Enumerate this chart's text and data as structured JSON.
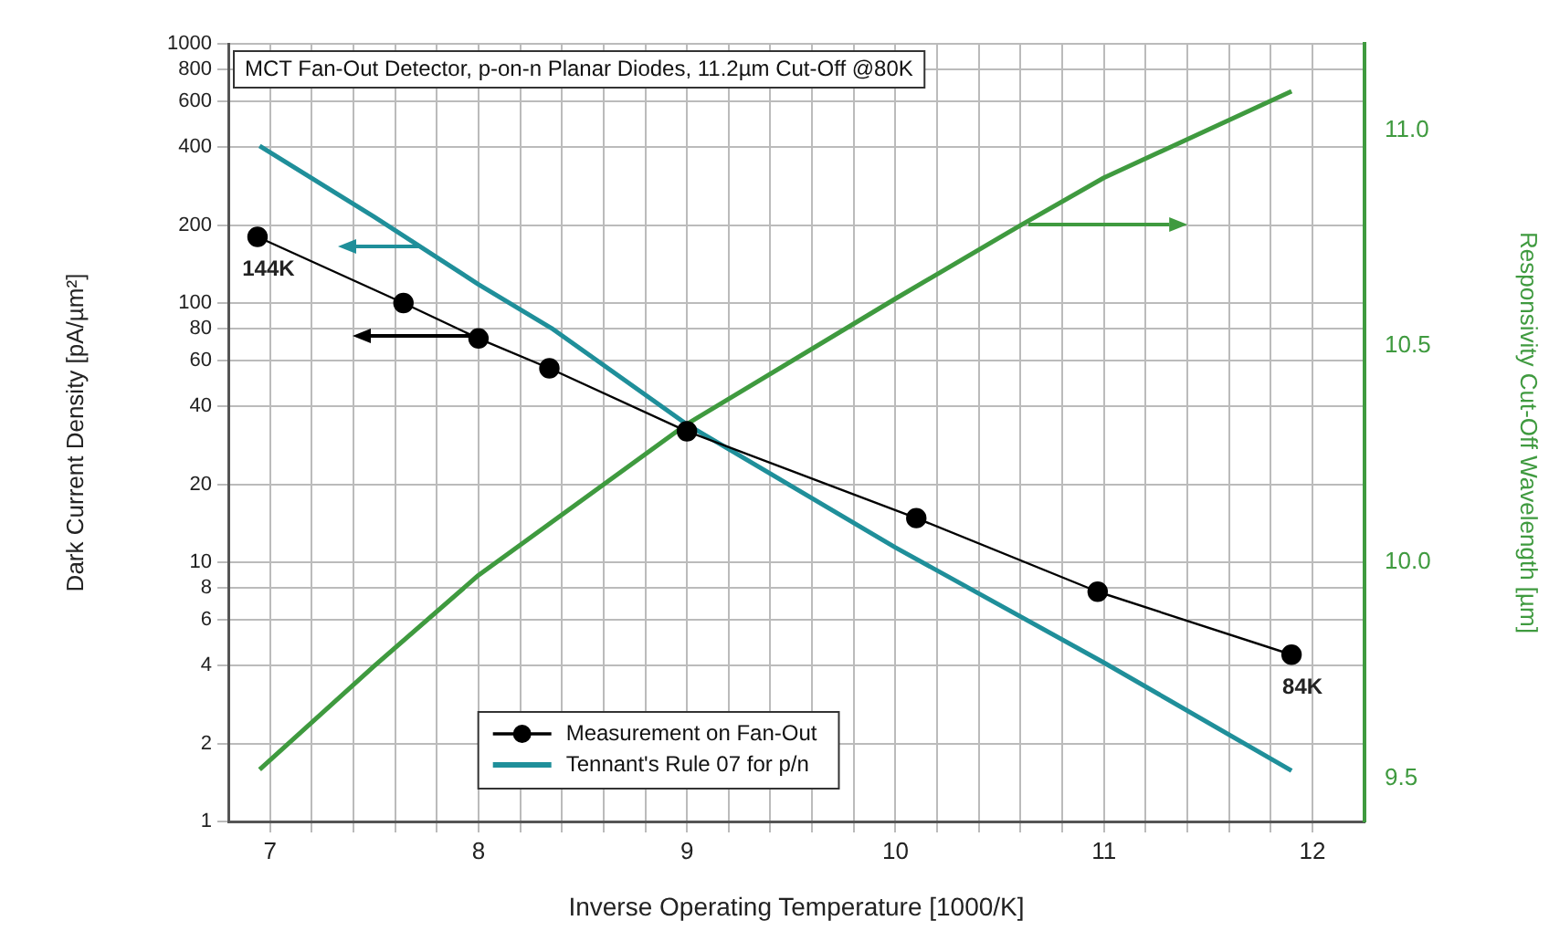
{
  "chart_data": {
    "type": "line",
    "title": "MCT Fan-Out Detector, p-on-n Planar Diodes, 11.2µm Cut-Off @80K",
    "xlabel": "Inverse Operating Temperature [1000/K]",
    "ylabel": "Dark Current Density [pA/µm²]",
    "y2label": "Responsivity Cut-Off Wavelength [µm]",
    "series": [
      {
        "name": "Measurement on Fan-Out",
        "color": "#000000",
        "marker": "circle",
        "x": [
          6.94,
          7.64,
          8.0,
          8.34,
          9.0,
          10.1,
          10.97,
          11.9
        ],
        "values": [
          180,
          100,
          73,
          56,
          32,
          14.8,
          7.7,
          4.4
        ]
      },
      {
        "name": "Tennant's Rule 07 for p/n",
        "color": "#1f8f9a",
        "marker": "none",
        "x": [
          6.95,
          7.5,
          8.0,
          8.35,
          9.0,
          10.0,
          11.0,
          11.9
        ],
        "values": [
          404,
          215,
          118,
          80,
          34,
          11.4,
          4.1,
          1.57
        ]
      },
      {
        "color": "#3f9a3f",
        "marker": "none",
        "axis": "y2",
        "x": [
          6.95,
          7.5,
          8.0,
          9.0,
          10.0,
          10.6,
          11.0,
          11.9
        ],
        "values": [
          9.52,
          9.76,
          9.97,
          10.32,
          10.61,
          10.78,
          10.89,
          11.09
        ]
      }
    ],
    "annotations": [
      {
        "text": "144K",
        "x": 6.94,
        "y": 180
      },
      {
        "text": "84K",
        "x": 11.9,
        "y": 4.4
      }
    ],
    "log": "y",
    "xlim": [
      6.8,
      12.25
    ],
    "xticks": [
      7,
      {
        "value": 7.2,
        "label": null
      },
      {
        "value": 7.4,
        "label": null
      },
      {
        "value": 7.6,
        "label": null
      },
      {
        "value": 7.8,
        "label": null
      },
      8,
      {
        "value": 8.2,
        "label": null
      },
      {
        "value": 8.4,
        "label": null
      },
      {
        "value": 8.6,
        "label": null
      },
      {
        "value": 8.8,
        "label": null
      },
      9,
      {
        "value": 9.2,
        "label": null
      },
      {
        "value": 9.4,
        "label": null
      },
      {
        "value": 9.6,
        "label": null
      },
      {
        "value": 9.8,
        "label": null
      },
      10,
      {
        "value": 10.2,
        "label": null
      },
      {
        "value": 10.4,
        "label": null
      },
      {
        "value": 10.6,
        "label": null
      },
      {
        "value": 10.8,
        "label": null
      },
      11,
      {
        "value": 11.2,
        "label": null
      },
      {
        "value": 11.4,
        "label": null
      },
      {
        "value": 11.6,
        "label": null
      },
      {
        "value": 11.8,
        "label": null
      },
      12
    ],
    "ylim": [
      1,
      1000
    ],
    "yticks": [
      1,
      2,
      4,
      6,
      8,
      10,
      20,
      40,
      60,
      80,
      100,
      200,
      400,
      600,
      800,
      1000
    ],
    "y2lim": [
      9.4,
      11.2
    ],
    "y2ticks": [
      9.5,
      {
        "value": 10,
        "label": "10.0"
      },
      10.5,
      {
        "value": 11,
        "label": "11.0"
      }
    ],
    "grid": true,
    "legend": "bottom",
    "line_style": "solid"
  }
}
